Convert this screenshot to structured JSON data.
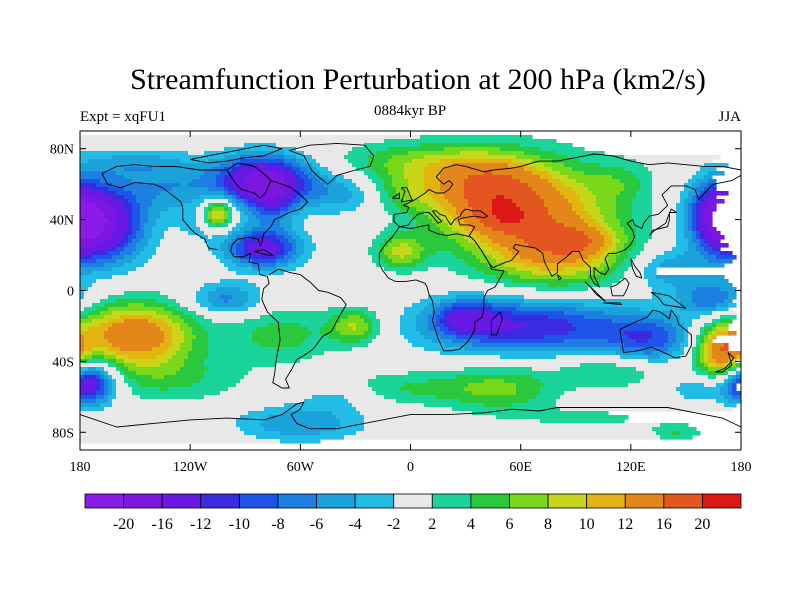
{
  "chart_data": {
    "type": "heatmap",
    "title": "Streamfunction Perturbation at 200 hPa (km2/s)",
    "center_subtitle": "0884kyr BP",
    "left_subtitle": "Expt = xqFU1",
    "right_subtitle": "JJA",
    "xlim": [
      -180,
      180
    ],
    "ylim": [
      -90,
      90
    ],
    "x_ticks": [
      {
        "value": -180,
        "label": "180"
      },
      {
        "value": -120,
        "label": "120W"
      },
      {
        "value": -60,
        "label": "60W"
      },
      {
        "value": 0,
        "label": "0"
      },
      {
        "value": 60,
        "label": "60E"
      },
      {
        "value": 120,
        "label": "120E"
      },
      {
        "value": 180,
        "label": "180"
      }
    ],
    "y_ticks": [
      {
        "value": 80,
        "label": "80N"
      },
      {
        "value": 40,
        "label": "40N"
      },
      {
        "value": 0,
        "label": "0"
      },
      {
        "value": -40,
        "label": "40S"
      },
      {
        "value": -80,
        "label": "80S"
      }
    ],
    "colorbar": {
      "labels": [
        "-20",
        "-16",
        "-12",
        "-10",
        "-8",
        "-6",
        "-4",
        "-2",
        "2",
        "4",
        "6",
        "8",
        "10",
        "12",
        "16",
        "20"
      ],
      "levels": [
        -20,
        -16,
        -12,
        -10,
        -8,
        -6,
        -4,
        -2,
        2,
        4,
        6,
        8,
        10,
        12,
        16,
        20
      ],
      "colors": [
        "#8a1bea",
        "#7d16e0",
        "#6a18e6",
        "#3a2be3",
        "#1e54e8",
        "#1e7fe2",
        "#1ca2db",
        "#22bde6",
        "#e8e8e8",
        "#1ad49a",
        "#2ac83c",
        "#7ad81b",
        "#c8d61a",
        "#e3b312",
        "#e3871a",
        "#e35620",
        "#dd1616"
      ]
    },
    "field": {
      "background_value": 0,
      "features": [
        {
          "lon": -170,
          "lat": 38,
          "value": -18,
          "rlon": 24,
          "rlat": 22
        },
        {
          "lon": -80,
          "lat": 62,
          "value": -18,
          "rlon": 26,
          "rlat": 14
        },
        {
          "lon": -130,
          "lat": 58,
          "value": -5,
          "rlon": 24,
          "rlat": 14
        },
        {
          "lon": -150,
          "lat": 72,
          "value": -4,
          "rlon": 30,
          "rlat": 8
        },
        {
          "lon": -80,
          "lat": 24,
          "value": -14,
          "rlon": 20,
          "rlat": 11
        },
        {
          "lon": -75,
          "lat": 48,
          "value": -6,
          "rlon": 12,
          "rlat": 12
        },
        {
          "lon": -35,
          "lat": 55,
          "value": -5,
          "rlon": 22,
          "rlat": 12
        },
        {
          "lon": -105,
          "lat": 43,
          "value": 14,
          "rlon": 9,
          "rlat": 9
        },
        {
          "lon": -110,
          "lat": 38,
          "value": -4,
          "rlon": 14,
          "rlat": 10
        },
        {
          "lon": 60,
          "lat": 48,
          "value": 14,
          "rlon": 48,
          "rlat": 26
        },
        {
          "lon": 40,
          "lat": 60,
          "value": 8,
          "rlon": 30,
          "rlat": 18
        },
        {
          "lon": 80,
          "lat": 20,
          "value": 10,
          "rlon": 40,
          "rlat": 20
        },
        {
          "lon": 50,
          "lat": 40,
          "value": 4,
          "rlon": 18,
          "rlat": 9
        },
        {
          "lon": -5,
          "lat": 22,
          "value": 8,
          "rlon": 14,
          "rlat": 10
        },
        {
          "lon": -5,
          "lat": 55,
          "value": 4,
          "rlon": 20,
          "rlat": 10
        },
        {
          "lon": 90,
          "lat": 28,
          "value": 6,
          "rlon": 20,
          "rlat": 8
        },
        {
          "lon": 0,
          "lat": 72,
          "value": 6,
          "rlon": 40,
          "rlat": 12
        },
        {
          "lon": 170,
          "lat": 42,
          "value": -16,
          "rlon": 18,
          "rlat": 20
        },
        {
          "lon": 140,
          "lat": 12,
          "value": -6,
          "rlon": 20,
          "rlat": 12
        },
        {
          "lon": 115,
          "lat": 62,
          "value": 3,
          "rlon": 16,
          "rlat": 12
        },
        {
          "lon": -150,
          "lat": -25,
          "value": 15,
          "rlon": 32,
          "rlat": 18
        },
        {
          "lon": -130,
          "lat": -50,
          "value": 4,
          "rlon": 40,
          "rlat": 14
        },
        {
          "lon": -70,
          "lat": -25,
          "value": 5,
          "rlon": 30,
          "rlat": 16
        },
        {
          "lon": -30,
          "lat": -20,
          "value": 8,
          "rlon": 14,
          "rlat": 10
        },
        {
          "lon": -60,
          "lat": -75,
          "value": -6,
          "rlon": 34,
          "rlat": 10
        },
        {
          "lon": -40,
          "lat": -60,
          "value": -3,
          "rlon": 20,
          "rlat": 8
        },
        {
          "lon": -100,
          "lat": -8,
          "value": -4,
          "rlon": 20,
          "rlat": 8
        },
        {
          "lon": -100,
          "lat": -2,
          "value": -4,
          "rlon": 20,
          "rlat": 8
        },
        {
          "lon": 65,
          "lat": -20,
          "value": -12,
          "rlon": 55,
          "rlat": 16
        },
        {
          "lon": 30,
          "lat": -15,
          "value": -8,
          "rlon": 18,
          "rlat": 10
        },
        {
          "lon": 50,
          "lat": -55,
          "value": 6,
          "rlon": 30,
          "rlat": 14
        },
        {
          "lon": 0,
          "lat": -55,
          "value": 4,
          "rlon": 40,
          "rlat": 10
        },
        {
          "lon": 110,
          "lat": -45,
          "value": 5,
          "rlon": 30,
          "rlat": 10
        },
        {
          "lon": 130,
          "lat": -28,
          "value": -8,
          "rlon": 24,
          "rlat": 14
        },
        {
          "lon": 165,
          "lat": -5,
          "value": -8,
          "rlon": 18,
          "rlat": 10
        },
        {
          "lon": 170,
          "lat": -35,
          "value": 15,
          "rlon": 14,
          "rlat": 16
        },
        {
          "lon": -172,
          "lat": -52,
          "value": -9,
          "rlon": 14,
          "rlat": 12
        },
        {
          "lon": 180,
          "lat": -52,
          "value": -9,
          "rlon": 14,
          "rlat": 12
        },
        {
          "lon": 155,
          "lat": -55,
          "value": -4,
          "rlon": 14,
          "rlat": 8
        },
        {
          "lon": 145,
          "lat": -80,
          "value": 4,
          "rlon": 14,
          "rlat": 5
        },
        {
          "lon": 100,
          "lat": -72,
          "value": 2.5,
          "rlon": 40,
          "rlat": 6
        }
      ]
    }
  }
}
